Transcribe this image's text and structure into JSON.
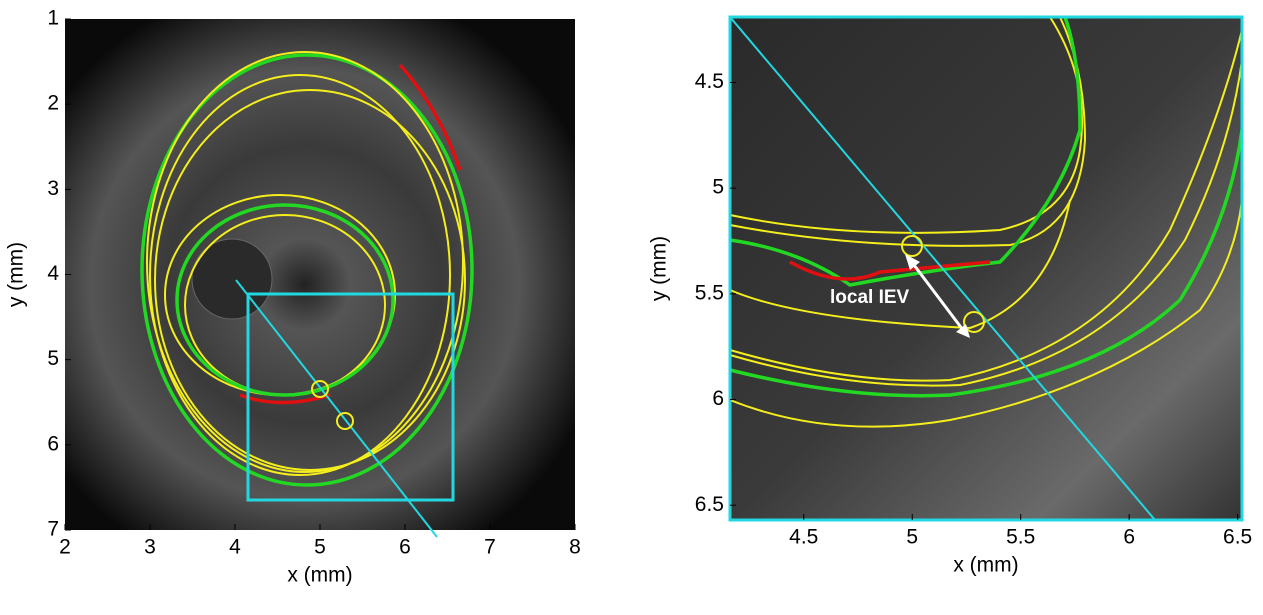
{
  "chart_data": [
    {
      "type": "image",
      "xlabel": "x (mm)",
      "ylabel": "y (mm)",
      "xlim": [
        2,
        8
      ],
      "ylim": [
        1,
        7
      ],
      "y_reversed": true,
      "xticks": [
        2,
        3,
        4,
        5,
        6,
        7,
        8
      ],
      "yticks": [
        1,
        2,
        3,
        4,
        5,
        6,
        7
      ]
    },
    {
      "type": "image",
      "xlabel": "x (mm)",
      "ylabel": "y (mm)",
      "xlim": [
        4.16,
        6.52
      ],
      "ylim": [
        4.19,
        6.57
      ],
      "y_reversed": true,
      "xticks": [
        4.5,
        5,
        5.5,
        6,
        6.5
      ],
      "yticks": [
        4.5,
        5,
        5.5,
        6,
        6.5
      ],
      "annotation": "local IEV"
    }
  ]
}
